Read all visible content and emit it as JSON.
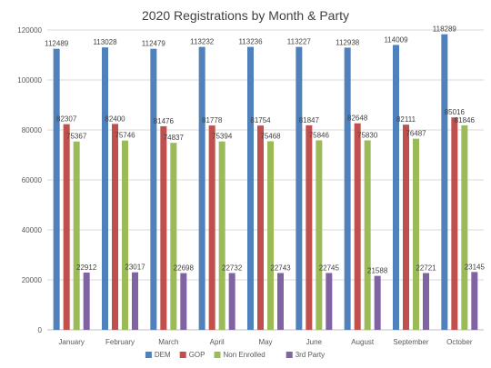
{
  "chart_data": {
    "type": "bar",
    "title": "2020 Registrations by Month & Party",
    "categories": [
      "January",
      "February",
      "March",
      "April",
      "May",
      "June",
      "August",
      "September",
      "October"
    ],
    "series": [
      {
        "name": "DEM",
        "color": "#4f81bd",
        "values": [
          112489,
          113028,
          112479,
          113232,
          113236,
          113227,
          112938,
          114009,
          118289
        ]
      },
      {
        "name": "GOP",
        "color": "#c0504d",
        "values": [
          82307,
          82400,
          81476,
          81778,
          81754,
          81847,
          82648,
          82111,
          85016
        ]
      },
      {
        "name": "Non Enrolled",
        "color": "#9bbb59",
        "values": [
          75367,
          75746,
          74837,
          75394,
          75468,
          75846,
          75830,
          76487,
          81846
        ]
      },
      {
        "name": "3rd Party",
        "color": "#8064a2",
        "values": [
          22912,
          23017,
          22698,
          22732,
          22743,
          22745,
          21588,
          22721,
          23145
        ]
      }
    ],
    "ylim": [
      0,
      120000
    ],
    "yticks": [
      0,
      20000,
      40000,
      60000,
      80000,
      100000,
      120000
    ],
    "grid": true,
    "data_labels": true,
    "legend_position": "bottom"
  }
}
